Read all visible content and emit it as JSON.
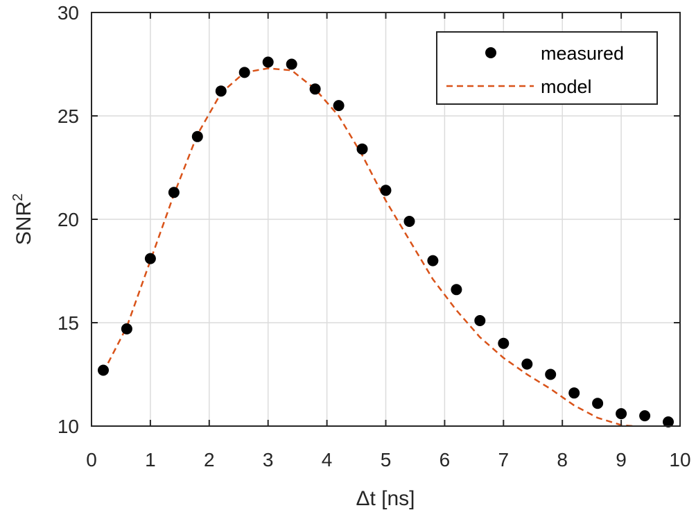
{
  "chart_data": {
    "type": "scatter",
    "title": "",
    "xlabel": "Δt [ns]",
    "ylabel_base": "SNR",
    "ylabel_sup": "2",
    "xlim": [
      0,
      10
    ],
    "ylim": [
      10,
      30
    ],
    "xticks": [
      0,
      1,
      2,
      3,
      4,
      5,
      6,
      7,
      8,
      9,
      10
    ],
    "yticks": [
      10,
      15,
      20,
      25,
      30
    ],
    "xtick_labels": [
      "0",
      "1",
      "2",
      "3",
      "4",
      "5",
      "6",
      "7",
      "8",
      "9",
      "10"
    ],
    "ytick_labels": [
      "10",
      "15",
      "20",
      "25",
      "30"
    ],
    "grid": true,
    "legend_position": "top-right",
    "series": [
      {
        "name": "measured",
        "kind": "markers",
        "color": "#000000",
        "x": [
          0.2,
          0.6,
          1.0,
          1.4,
          1.8,
          2.2,
          2.6,
          3.0,
          3.4,
          3.8,
          4.2,
          4.6,
          5.0,
          5.4,
          5.8,
          6.2,
          6.6,
          7.0,
          7.4,
          7.8,
          8.2,
          8.6,
          9.0,
          9.4,
          9.8
        ],
        "y": [
          12.7,
          14.7,
          18.1,
          21.3,
          24.0,
          26.2,
          27.1,
          27.6,
          27.5,
          26.3,
          25.5,
          23.4,
          21.4,
          19.9,
          18.0,
          16.6,
          15.1,
          14.0,
          13.0,
          12.5,
          11.6,
          11.1,
          10.6,
          10.5,
          10.2
        ]
      },
      {
        "name": "model",
        "kind": "dashed-line",
        "color": "#D95319",
        "x": [
          0.2,
          0.6,
          1.0,
          1.4,
          1.8,
          2.2,
          2.6,
          3.0,
          3.4,
          3.8,
          4.2,
          4.6,
          5.0,
          5.4,
          5.8,
          6.2,
          6.6,
          7.0,
          7.4,
          7.8,
          8.2,
          8.6,
          9.0,
          9.4
        ],
        "y": [
          12.6,
          14.8,
          18.0,
          21.2,
          24.1,
          26.1,
          27.1,
          27.3,
          27.2,
          26.3,
          25.0,
          23.1,
          20.9,
          19.0,
          17.1,
          15.6,
          14.3,
          13.3,
          12.5,
          11.8,
          11.0,
          10.4,
          10.05,
          9.95
        ]
      }
    ]
  }
}
